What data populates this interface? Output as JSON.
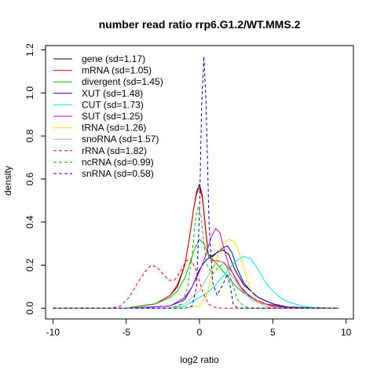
{
  "chart_data": {
    "type": "line",
    "title": "number read ratio rrp6.G1.2/WT.MMS.2",
    "xlabel": "log2 ratio",
    "ylabel": "density",
    "xlim": [
      -10.5,
      10.5
    ],
    "ylim": [
      -0.05,
      1.22
    ],
    "xticks": [
      -10,
      -5,
      0,
      5,
      10
    ],
    "yticks": [
      0.0,
      0.2,
      0.4,
      0.6,
      0.8,
      1.0,
      1.2
    ],
    "grid": false,
    "legend_position": "top-left",
    "series": [
      {
        "name": "gene (sd=1.17)",
        "color": "#000000",
        "dash": "solid",
        "points": [
          [
            -10,
            0
          ],
          [
            -5,
            0
          ],
          [
            -3,
            0.02
          ],
          [
            -2,
            0.06
          ],
          [
            -1.5,
            0.1
          ],
          [
            -1,
            0.2
          ],
          [
            -0.7,
            0.32
          ],
          [
            -0.4,
            0.46
          ],
          [
            -0.2,
            0.54
          ],
          [
            0,
            0.575
          ],
          [
            0.2,
            0.52
          ],
          [
            0.4,
            0.38
          ],
          [
            0.6,
            0.25
          ],
          [
            0.9,
            0.24
          ],
          [
            1.2,
            0.26
          ],
          [
            1.6,
            0.27
          ],
          [
            2.0,
            0.25
          ],
          [
            2.4,
            0.18
          ],
          [
            3,
            0.11
          ],
          [
            4,
            0.05
          ],
          [
            5,
            0.02
          ],
          [
            6,
            0.005
          ],
          [
            9.5,
            0
          ]
        ]
      },
      {
        "name": "mRNA (sd=1.05)",
        "color": "#ff0000",
        "dash": "solid",
        "points": [
          [
            -10,
            0
          ],
          [
            -5,
            0
          ],
          [
            -3,
            0.02
          ],
          [
            -2,
            0.06
          ],
          [
            -1.5,
            0.11
          ],
          [
            -1,
            0.2
          ],
          [
            -0.7,
            0.32
          ],
          [
            -0.4,
            0.46
          ],
          [
            -0.2,
            0.53
          ],
          [
            0,
            0.56
          ],
          [
            0.2,
            0.51
          ],
          [
            0.4,
            0.37
          ],
          [
            0.6,
            0.24
          ],
          [
            0.9,
            0.22
          ],
          [
            1.3,
            0.22
          ],
          [
            1.7,
            0.21
          ],
          [
            2.2,
            0.17
          ],
          [
            2.8,
            0.1
          ],
          [
            3.5,
            0.05
          ],
          [
            4.5,
            0.02
          ],
          [
            6,
            0.003
          ],
          [
            9.5,
            0
          ]
        ]
      },
      {
        "name": "divergent (sd=1.45)",
        "color": "#00bb00",
        "dash": "solid",
        "points": [
          [
            -10,
            0
          ],
          [
            -5,
            0
          ],
          [
            -3,
            0.02
          ],
          [
            -2,
            0.05
          ],
          [
            -1.5,
            0.08
          ],
          [
            -1,
            0.14
          ],
          [
            -0.6,
            0.22
          ],
          [
            -0.3,
            0.28
          ],
          [
            0,
            0.32
          ],
          [
            0.3,
            0.3
          ],
          [
            0.6,
            0.25
          ],
          [
            1,
            0.22
          ],
          [
            1.5,
            0.18
          ],
          [
            2,
            0.14
          ],
          [
            2.5,
            0.1
          ],
          [
            3,
            0.07
          ],
          [
            4,
            0.03
          ],
          [
            5,
            0.01
          ],
          [
            6,
            0.002
          ],
          [
            9.5,
            0
          ]
        ]
      },
      {
        "name": "XUT (sd=1.48)",
        "color": "#0000cc",
        "dash": "solid",
        "points": [
          [
            -10,
            0
          ],
          [
            -5,
            0
          ],
          [
            -2,
            0.01
          ],
          [
            -1,
            0.04
          ],
          [
            -0.5,
            0.1
          ],
          [
            0,
            0.18
          ],
          [
            0.4,
            0.22
          ],
          [
            0.8,
            0.24
          ],
          [
            1.2,
            0.26
          ],
          [
            1.6,
            0.28
          ],
          [
            1.9,
            0.29
          ],
          [
            2.2,
            0.26
          ],
          [
            2.6,
            0.18
          ],
          [
            3,
            0.12
          ],
          [
            3.5,
            0.08
          ],
          [
            4,
            0.05
          ],
          [
            5,
            0.02
          ],
          [
            6,
            0.005
          ],
          [
            8,
            0
          ],
          [
            9.5,
            0
          ]
        ]
      },
      {
        "name": "CUT (sd=1.73)",
        "color": "#00e5ee",
        "dash": "solid",
        "points": [
          [
            -10,
            0
          ],
          [
            -5,
            0
          ],
          [
            -2,
            0
          ],
          [
            -1,
            0.01
          ],
          [
            0,
            0.05
          ],
          [
            0.5,
            0.07
          ],
          [
            1,
            0.1
          ],
          [
            1.5,
            0.14
          ],
          [
            2,
            0.18
          ],
          [
            2.5,
            0.22
          ],
          [
            3,
            0.24
          ],
          [
            3.5,
            0.23
          ],
          [
            4,
            0.18
          ],
          [
            4.5,
            0.12
          ],
          [
            5,
            0.08
          ],
          [
            5.5,
            0.05
          ],
          [
            6,
            0.03
          ],
          [
            7,
            0.01
          ],
          [
            8,
            0.002
          ],
          [
            9.5,
            0
          ]
        ]
      },
      {
        "name": "SUT (sd=1.25)",
        "color": "#cc00cc",
        "dash": "solid",
        "points": [
          [
            -10,
            0
          ],
          [
            -5,
            0
          ],
          [
            -2,
            0.01
          ],
          [
            -1,
            0.05
          ],
          [
            -0.5,
            0.1
          ],
          [
            0,
            0.17
          ],
          [
            0.4,
            0.24
          ],
          [
            0.8,
            0.33
          ],
          [
            1.1,
            0.37
          ],
          [
            1.4,
            0.35
          ],
          [
            1.7,
            0.27
          ],
          [
            2,
            0.2
          ],
          [
            2.5,
            0.13
          ],
          [
            3,
            0.08
          ],
          [
            4,
            0.03
          ],
          [
            5,
            0.01
          ],
          [
            6,
            0.002
          ],
          [
            9.5,
            0
          ]
        ]
      },
      {
        "name": "tRNA (sd=1.26)",
        "color": "#ffdd00",
        "dash": "solid",
        "points": [
          [
            -10,
            0
          ],
          [
            -5,
            0
          ],
          [
            -1,
            0
          ],
          [
            0,
            0.01
          ],
          [
            0.5,
            0.06
          ],
          [
            1,
            0.2
          ],
          [
            1.5,
            0.29
          ],
          [
            2,
            0.32
          ],
          [
            2.4,
            0.31
          ],
          [
            2.8,
            0.24
          ],
          [
            3.2,
            0.14
          ],
          [
            3.6,
            0.07
          ],
          [
            4,
            0.03
          ],
          [
            4.5,
            0.01
          ],
          [
            5,
            0
          ],
          [
            9.5,
            0
          ]
        ]
      },
      {
        "name": "snoRNA (sd=1.57)",
        "color": "#b3b3b3",
        "dash": "solid",
        "points": [
          [
            -10,
            0
          ],
          [
            -5,
            0
          ],
          [
            -2,
            0
          ],
          [
            -1,
            0.02
          ],
          [
            0,
            0.08
          ],
          [
            0.5,
            0.14
          ],
          [
            1,
            0.2
          ],
          [
            1.4,
            0.22
          ],
          [
            1.8,
            0.2
          ],
          [
            2.2,
            0.15
          ],
          [
            2.8,
            0.09
          ],
          [
            3.5,
            0.04
          ],
          [
            4.5,
            0.01
          ],
          [
            6,
            0
          ],
          [
            9.5,
            0
          ]
        ]
      },
      {
        "name": "rRNA (sd=1.82)",
        "color": "#ff0000",
        "dash": "dashed",
        "points": [
          [
            -10,
            0
          ],
          [
            -6,
            0
          ],
          [
            -5.4,
            0.01
          ],
          [
            -4.8,
            0.05
          ],
          [
            -4.2,
            0.12
          ],
          [
            -3.7,
            0.17
          ],
          [
            -3.3,
            0.2
          ],
          [
            -2.9,
            0.19
          ],
          [
            -2.5,
            0.16
          ],
          [
            -2.1,
            0.13
          ],
          [
            -1.7,
            0.13
          ],
          [
            -1.3,
            0.17
          ],
          [
            -0.9,
            0.22
          ],
          [
            -0.6,
            0.23
          ],
          [
            -0.2,
            0.17
          ],
          [
            0.2,
            0.08
          ],
          [
            0.6,
            0.02
          ],
          [
            1,
            0.005
          ],
          [
            1.5,
            0
          ],
          [
            9.5,
            0
          ]
        ]
      },
      {
        "name": "ncRNA (sd=0.99)",
        "color": "#00bb00",
        "dash": "dashed",
        "points": [
          [
            -10,
            0
          ],
          [
            -2,
            0
          ],
          [
            -1.2,
            0.02
          ],
          [
            -0.8,
            0.1
          ],
          [
            -0.5,
            0.25
          ],
          [
            -0.3,
            0.4
          ],
          [
            -0.1,
            0.47
          ],
          [
            0.1,
            0.43
          ],
          [
            0.3,
            0.3
          ],
          [
            0.5,
            0.2
          ],
          [
            0.9,
            0.16
          ],
          [
            1.3,
            0.19
          ],
          [
            1.7,
            0.21
          ],
          [
            2.0,
            0.17
          ],
          [
            2.3,
            0.1
          ],
          [
            2.6,
            0.04
          ],
          [
            3,
            0.01
          ],
          [
            3.5,
            0
          ],
          [
            9.5,
            0
          ]
        ]
      },
      {
        "name": "snRNA (sd=0.58)",
        "color": "#0000cc",
        "dash": "dashed",
        "points": [
          [
            -10,
            0
          ],
          [
            -1,
            0
          ],
          [
            -0.5,
            0.01
          ],
          [
            -0.2,
            0.1
          ],
          [
            0,
            0.45
          ],
          [
            0.15,
            0.95
          ],
          [
            0.3,
            1.17
          ],
          [
            0.45,
            0.95
          ],
          [
            0.65,
            0.4
          ],
          [
            0.9,
            0.12
          ],
          [
            1.2,
            0.06
          ],
          [
            1.6,
            0.11
          ],
          [
            1.9,
            0.16
          ],
          [
            2.1,
            0.1
          ],
          [
            2.3,
            0.02
          ],
          [
            2.6,
            0
          ],
          [
            9.5,
            0
          ]
        ]
      }
    ]
  }
}
